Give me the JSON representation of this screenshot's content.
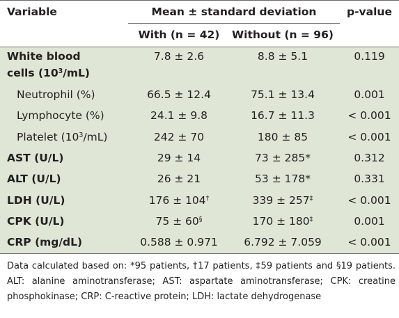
{
  "headers": {
    "variable": "Variable",
    "group": "Mean ± standard deviation",
    "p_value": "p-value",
    "with": "With (n = 42)",
    "without": "Without (n = 96)"
  },
  "rows": [
    {
      "label_line1": "White blood",
      "label_line2": "cells (10",
      "label_sup": "3",
      "label_tail": "/mL)",
      "with": "7.8 ± 2.6",
      "without": "8.8 ± 5.1",
      "p": "0.119"
    },
    {
      "label": "Neutrophil (%)",
      "with": "66.5 ± 12.4",
      "without": "75.1 ± 13.4",
      "p": "0.001"
    },
    {
      "label": "Lymphocyte (%)",
      "with": "24.1 ± 9.8",
      "without": "16.7 ± 11.3",
      "p": "< 0.001"
    },
    {
      "label_pre": "Platelet (10",
      "label_sup": "3",
      "label_tail": "/mL)",
      "with": "242 ± 70",
      "without": "180 ± 85",
      "p": "< 0.001"
    },
    {
      "label": "AST (U/L)",
      "with": "29 ± 14",
      "without": "73 ± 285*",
      "p": "0.312"
    },
    {
      "label": "ALT (U/L)",
      "with": "26 ± 21",
      "without": "53 ± 178*",
      "p": "0.331"
    },
    {
      "label": "LDH (U/L)",
      "with": "176 ± 104",
      "with_sup": "†",
      "without": "339 ± 257",
      "without_sup": "‡",
      "p": "< 0.001"
    },
    {
      "label": "CPK (U/L)",
      "with": "75 ± 60",
      "with_sup": "§",
      "without": "170 ± 180",
      "without_sup": "‡",
      "p": "0.001"
    },
    {
      "label": "CRP (mg/dL)",
      "with": "0.588 ± 0.971",
      "without": "6.792 ± 7.059",
      "p": "< 0.001"
    }
  ],
  "footnote": "Data calculated based on: *95 patients, †17 patients, ‡59 patients and §19 patients. ALT: alanine aminotransferase; AST: aspartate aminotransferase; CPK: creatine phosphokinase; CRP: C-reactive protein; LDH: lactate dehydrogenase"
}
